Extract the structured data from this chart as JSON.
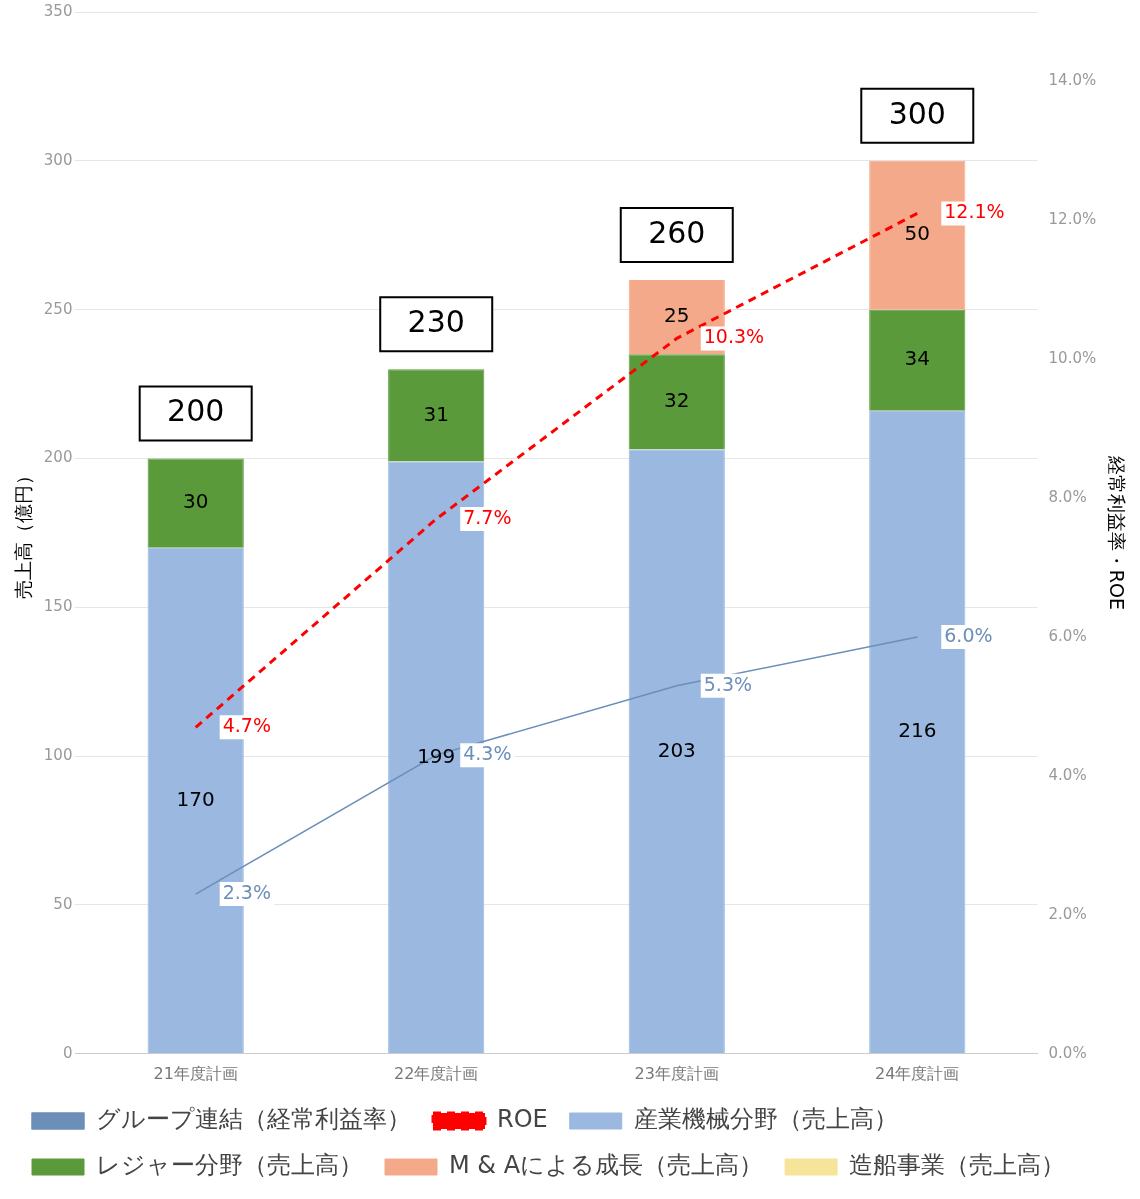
{
  "chart_data": {
    "type": "bar",
    "stacked": true,
    "ylabel": "売上高（億円）",
    "y2label": "経常利益率・ROE",
    "categories": [
      "21年度計画",
      "22年度計画",
      "23年度計画",
      "24年度計画"
    ],
    "series": [
      {
        "name": "産業機械分野（売上高）",
        "color": "#9ab8e0",
        "values": [
          170,
          199,
          203,
          216
        ],
        "value_labels": [
          "170",
          "199",
          "203",
          "216"
        ]
      },
      {
        "name": "レジャー分野（売上高）",
        "color": "#5a9a3a",
        "values": [
          30,
          31,
          32,
          34
        ],
        "value_labels": [
          "30",
          "31",
          "32",
          "34"
        ]
      },
      {
        "name": "M & Aによる成長（売上高）",
        "color": "#f4a98a",
        "values": [
          null,
          null,
          25,
          50
        ],
        "value_labels": [
          null,
          null,
          "25",
          "50"
        ]
      },
      {
        "name": "造船事業（売上高）",
        "color": "#f5e49a",
        "values": [
          null,
          null,
          null,
          null
        ]
      },
      {
        "name": "グループ連結（経常利益率）",
        "type": "line",
        "axis": "y2",
        "color": "#6b8fb8",
        "line_style": "solid",
        "marker": "none",
        "values": [
          2.3,
          4.3,
          5.3,
          6.0
        ],
        "value_labels": [
          "2.3%",
          "4.3%",
          "5.3%",
          "6.0%"
        ]
      },
      {
        "name": "ROE",
        "type": "line",
        "axis": "y2",
        "color": "#ff0000",
        "line_style": "dashed",
        "marker": "none",
        "values": [
          4.7,
          7.7,
          10.3,
          12.1
        ],
        "value_labels": [
          "4.7%",
          "7.7%",
          "10.3%",
          "12.1%"
        ]
      }
    ],
    "totals": [
      "200",
      "230",
      "260",
      "300"
    ],
    "ylim": [
      0,
      350
    ],
    "yticks": [
      0,
      50,
      100,
      150,
      200,
      250,
      300,
      350
    ],
    "y2lim": [
      0,
      15
    ],
    "y2ticks": [
      {
        "value": 0,
        "label": "0.0%"
      },
      {
        "value": 2,
        "label": "2.0%"
      },
      {
        "value": 4,
        "label": "4.0%"
      },
      {
        "value": 6,
        "label": "6.0%"
      },
      {
        "value": 8,
        "label": "8.0%"
      },
      {
        "value": 10,
        "label": "10.0%"
      },
      {
        "value": 12,
        "label": "12.0%"
      },
      {
        "value": 14,
        "label": "14.0%"
      }
    ],
    "grid": "y",
    "legend": "bottom"
  }
}
